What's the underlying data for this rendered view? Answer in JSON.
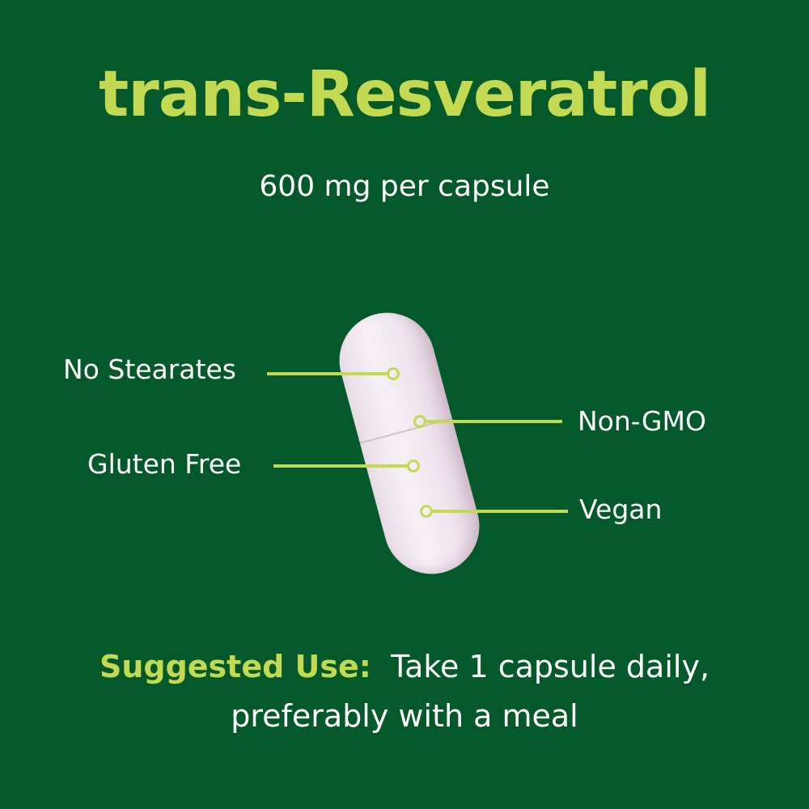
{
  "title": "trans-Resveratrol",
  "subtitle": "600 mg per capsule",
  "features": {
    "no_stearates": "No Stearates",
    "non_gmo": "Non-GMO",
    "gluten_free": "Gluten Free",
    "vegan": "Vegan"
  },
  "suggested_use": {
    "label": "Suggested Use:",
    "line1": "Take 1 capsule daily,",
    "line2": "preferably with a meal"
  },
  "colors": {
    "background": "#04592a",
    "accent": "#c2d951",
    "text": "#ffffff"
  }
}
